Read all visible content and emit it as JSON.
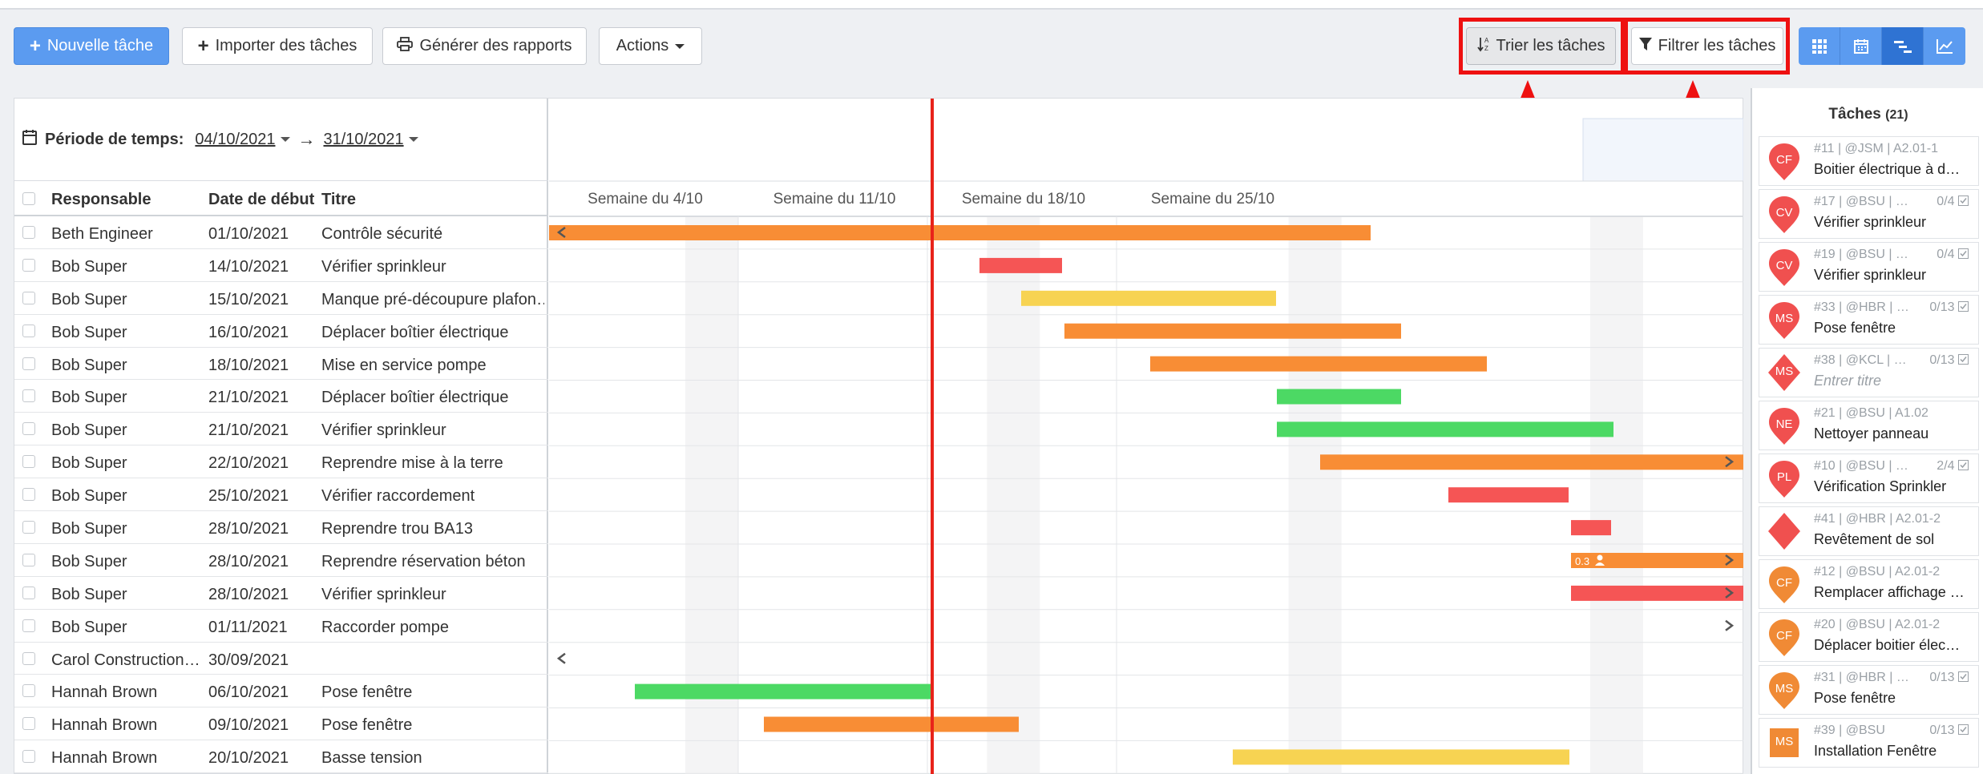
{
  "toolbar": {
    "new_task": "Nouvelle tâche",
    "import": "Importer des tâches",
    "reports": "Générer des rapports",
    "actions": "Actions",
    "sort": "Trier les tâches",
    "filter": "Filtrer les tâches"
  },
  "period": {
    "label": "Période de temps:",
    "start": "04/10/2021",
    "arrow": "→",
    "end": "31/10/2021"
  },
  "table": {
    "headers": {
      "owner": "Responsable",
      "start": "Date de début",
      "title": "Titre"
    },
    "rows": [
      {
        "owner": "Beth Engineer",
        "start": "01/10/2021",
        "title": "Contrôle sécurité"
      },
      {
        "owner": "Bob Super",
        "start": "14/10/2021",
        "title": "Vérifier sprinkleur"
      },
      {
        "owner": "Bob Super",
        "start": "15/10/2021",
        "title": "Manque pré-découpure plafon…"
      },
      {
        "owner": "Bob Super",
        "start": "16/10/2021",
        "title": "Déplacer boîtier électrique"
      },
      {
        "owner": "Bob Super",
        "start": "18/10/2021",
        "title": "Mise en service pompe"
      },
      {
        "owner": "Bob Super",
        "start": "21/10/2021",
        "title": "Déplacer boîtier électrique"
      },
      {
        "owner": "Bob Super",
        "start": "21/10/2021",
        "title": "Vérifier sprinkleur"
      },
      {
        "owner": "Bob Super",
        "start": "22/10/2021",
        "title": "Reprendre mise à la terre"
      },
      {
        "owner": "Bob Super",
        "start": "25/10/2021",
        "title": "Vérifier raccordement"
      },
      {
        "owner": "Bob Super",
        "start": "28/10/2021",
        "title": "Reprendre trou BA13"
      },
      {
        "owner": "Bob Super",
        "start": "28/10/2021",
        "title": "Reprendre réservation béton"
      },
      {
        "owner": "Bob Super",
        "start": "28/10/2021",
        "title": "Vérifier sprinkleur"
      },
      {
        "owner": "Bob Super",
        "start": "01/11/2021",
        "title": "Raccorder pompe"
      },
      {
        "owner": "Carol Construction…",
        "start": "30/09/2021",
        "title": ""
      },
      {
        "owner": "Hannah Brown",
        "start": "06/10/2021",
        "title": "Pose fenêtre"
      },
      {
        "owner": "Hannah Brown",
        "start": "09/10/2021",
        "title": "Pose fenêtre"
      },
      {
        "owner": "Hannah Brown",
        "start": "20/10/2021",
        "title": "Basse tension"
      }
    ]
  },
  "gantt": {
    "weeks": [
      "Semaine du 4/10",
      "Semaine du 11/10",
      "Semaine du 18/10",
      "Semaine du 25/10"
    ],
    "overflow_left": "<",
    "overflow_right": ">",
    "badge": "0.3"
  },
  "sidebar": {
    "title": "Tâches",
    "count": "(21)",
    "cards": [
      {
        "meta": "#11 | @JSM | A2.01-1",
        "progress": "",
        "title": "Boitier électrique à d…",
        "initials": "CF",
        "shape": "pin",
        "color": "#f0504f"
      },
      {
        "meta": "#17 | @BSU | …",
        "progress": "0/4",
        "title": "Vérifier sprinkleur",
        "initials": "CV",
        "shape": "pin",
        "color": "#f0504f"
      },
      {
        "meta": "#19 | @BSU | …",
        "progress": "0/4",
        "title": "Vérifier sprinkleur",
        "initials": "CV",
        "shape": "pin",
        "color": "#f0504f"
      },
      {
        "meta": "#33 | @HBR | …",
        "progress": "0/13",
        "title": "Pose fenêtre",
        "initials": "MS",
        "shape": "pin",
        "color": "#f0504f"
      },
      {
        "meta": "#38 | @KCL | …",
        "progress": "0/13",
        "title": "Entrer titre",
        "initials": "MS",
        "shape": "diamond",
        "color": "#f0504f",
        "placeholder": true
      },
      {
        "meta": "#21 | @BSU | A1.02",
        "progress": "",
        "title": "Nettoyer panneau",
        "initials": "NE",
        "shape": "pin",
        "color": "#f0504f"
      },
      {
        "meta": "#10 | @BSU | …",
        "progress": "2/4",
        "title": "Vérification Sprinkler",
        "initials": "PL",
        "shape": "pin",
        "color": "#f0504f"
      },
      {
        "meta": "#41 | @HBR | A2.01-2",
        "progress": "",
        "title": "Revêtement de sol",
        "initials": "",
        "shape": "diamond",
        "color": "#f0504f"
      },
      {
        "meta": "#12 | @BSU | A2.01-2",
        "progress": "",
        "title": "Remplacer affichage …",
        "initials": "CF",
        "shape": "pin",
        "color": "#f08a35"
      },
      {
        "meta": "#20 | @BSU | A2.01-2",
        "progress": "",
        "title": "Déplacer boitier élec…",
        "initials": "CF",
        "shape": "pin",
        "color": "#f08a35"
      },
      {
        "meta": "#31 | @HBR | …",
        "progress": "0/13",
        "title": "Pose fenêtre",
        "initials": "MS",
        "shape": "pin",
        "color": "#f08a35"
      },
      {
        "meta": "#39 | @BSU",
        "progress": "0/13",
        "title": "Installation Fenêtre",
        "initials": "MS",
        "shape": "square",
        "color": "#f08a35"
      }
    ]
  },
  "colors": {
    "orange": "#f88d35",
    "red": "#f55555",
    "yellow": "#f7d352",
    "green": "#4cd964",
    "today": "#e8231a"
  }
}
